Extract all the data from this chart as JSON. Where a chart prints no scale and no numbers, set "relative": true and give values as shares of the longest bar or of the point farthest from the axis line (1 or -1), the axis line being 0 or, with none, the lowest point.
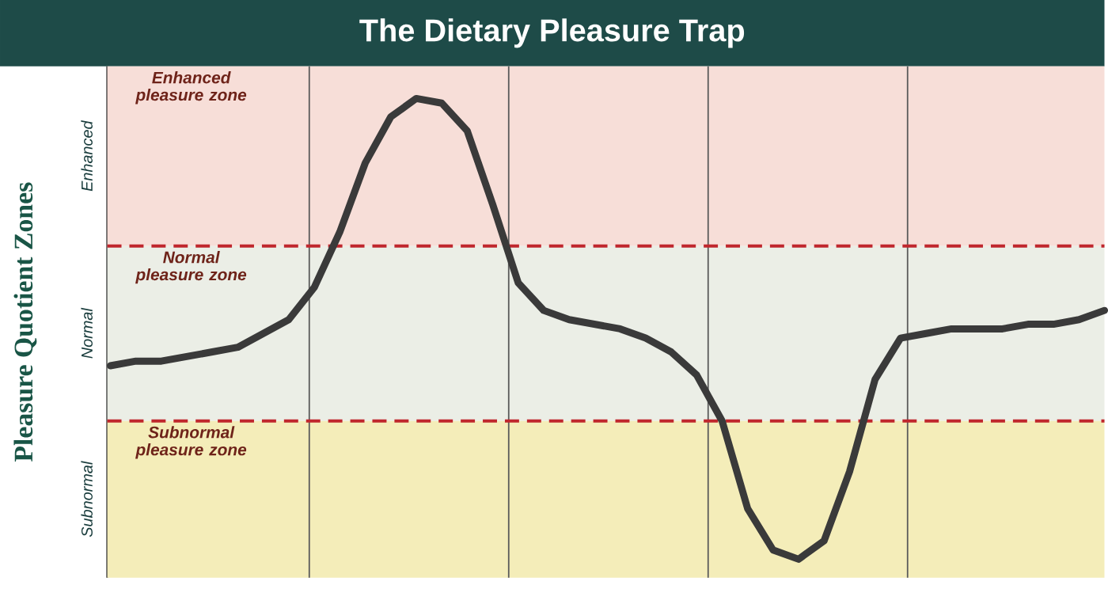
{
  "chart_data": {
    "type": "line",
    "title": "The Dietary Pleasure Trap",
    "ylabel": "Pleasure Quotient Zones",
    "marker": "none",
    "line_style": "solid",
    "relative": true,
    "categories": [
      null,
      null,
      null,
      null,
      null,
      null,
      null,
      null,
      null,
      null,
      null,
      null,
      null,
      null,
      null,
      null,
      null,
      null,
      null,
      null,
      null,
      null,
      null,
      null,
      null,
      null,
      null,
      null,
      null,
      null,
      null,
      null,
      null,
      null,
      null,
      null,
      null,
      null,
      null,
      null
    ],
    "series": [
      {
        "color": "#3a3a3a",
        "values": [
          0.42,
          0.43,
          0.43,
          0.44,
          0.45,
          0.46,
          0.49,
          0.52,
          0.59,
          0.71,
          0.86,
          0.96,
          1,
          0.99,
          0.93,
          0.77,
          0.6,
          0.54,
          0.52,
          0.51,
          0.5,
          0.48,
          0.45,
          0.4,
          0.3,
          0.11,
          0.02,
          0,
          0.04,
          0.19,
          0.39,
          0.48,
          0.49,
          0.5,
          0.5,
          0.5,
          0.51,
          0.51,
          0.52,
          0.54
        ]
      }
    ],
    "bands": [
      {
        "axis": "y",
        "from": 0.68,
        "to": 1.07,
        "label": "Enhanced pleasure zone",
        "color": "#f7ded8"
      },
      {
        "axis": "y",
        "from": 0.3,
        "to": 0.68,
        "label": "Normal pleasure zone",
        "color": "#ebeee6"
      },
      {
        "axis": "y",
        "from": -0.04,
        "to": 0.3,
        "label": "Subnormal pleasure zone",
        "color": "#f4edb9"
      }
    ],
    "ref_lines": [
      {
        "axis": "y",
        "value": 0.68,
        "color": "#c0272d",
        "line_style": "dashed"
      },
      {
        "axis": "y",
        "value": 0.3,
        "color": "#c0272d",
        "line_style": "dashed"
      }
    ],
    "annotations": [
      "Enhanced",
      "Normal",
      "Subnormal"
    ]
  }
}
